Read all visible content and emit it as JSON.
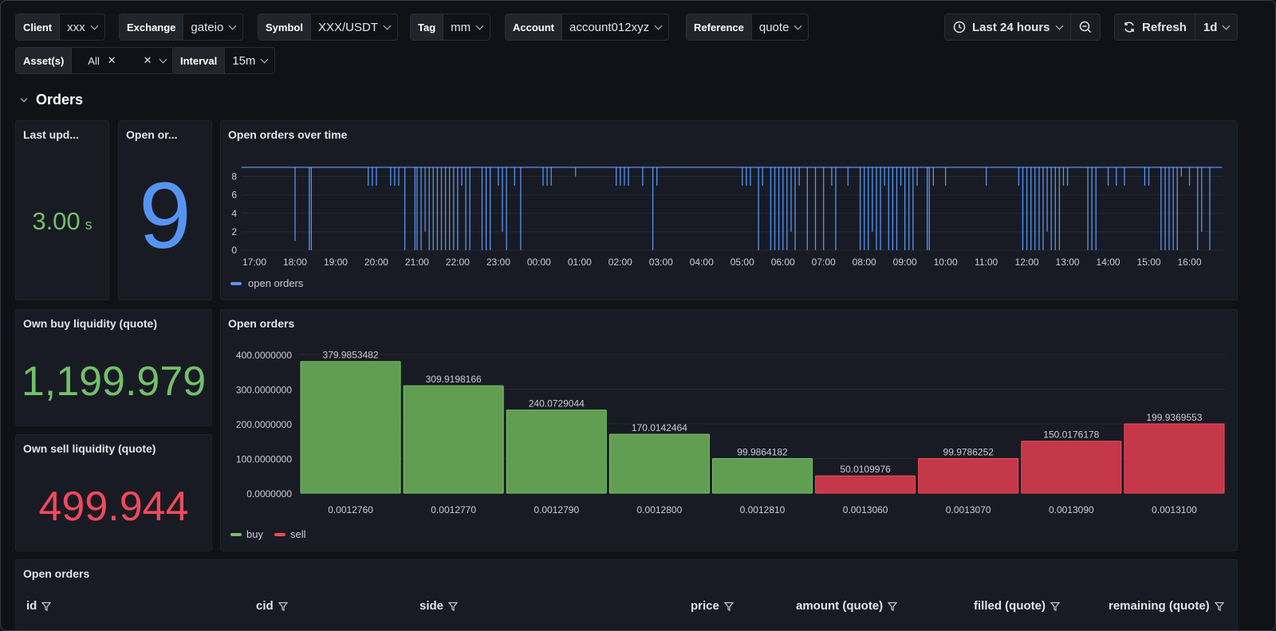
{
  "variables": {
    "client": {
      "label": "Client",
      "value": "xxx"
    },
    "exchange": {
      "label": "Exchange",
      "value": "gateio"
    },
    "symbol": {
      "label": "Symbol",
      "value": "XXX/USDT"
    },
    "tag": {
      "label": "Tag",
      "value": "mm"
    },
    "account": {
      "label": "Account",
      "value": "account012xyz"
    },
    "reference": {
      "label": "Reference",
      "value": "quote"
    },
    "assets": {
      "label": "Asset(s)",
      "value": "All"
    },
    "interval": {
      "label": "Interval",
      "value": "15m"
    }
  },
  "time_picker": {
    "label": "Last 24 hours",
    "icon": "clock-icon"
  },
  "zoom_out": {
    "icon": "zoom-out-icon"
  },
  "refresh": {
    "label": "Refresh",
    "interval": "1d",
    "icon": "refresh-icon"
  },
  "section": {
    "title": "Orders"
  },
  "panels": {
    "last_update": {
      "title": "Last upd...",
      "value": "3.00",
      "unit": "s",
      "color": "#73bf69"
    },
    "open_orders_count": {
      "title": "Open or...",
      "value": "9",
      "color": "#5794f2"
    },
    "open_orders_time": {
      "title": "Open orders over time",
      "legend": "open orders",
      "color": "#5794f2"
    },
    "buy_liq": {
      "title": "Own buy liquidity (quote)",
      "value": "1,199.979",
      "color": "#73bf69"
    },
    "sell_liq": {
      "title": "Own sell liquidity (quote)",
      "value": "499.944",
      "color": "#f2495c"
    },
    "open_orders_bar": {
      "title": "Open orders",
      "legend_buy": "buy",
      "legend_sell": "sell",
      "buy_color": "#73bf69",
      "sell_color": "#f2495c"
    },
    "table": {
      "title": "Open orders",
      "columns": [
        "id",
        "cid",
        "side",
        "price",
        "amount (quote)",
        "filled (quote)",
        "remaining (quote)"
      ]
    }
  },
  "chart_data": [
    {
      "type": "line",
      "title": "Open orders over time",
      "series": [
        {
          "name": "open orders",
          "color": "#5794f2",
          "baseline": 9
        }
      ],
      "x_ticks": [
        "17:00",
        "18:00",
        "19:00",
        "20:00",
        "21:00",
        "22:00",
        "23:00",
        "00:00",
        "01:00",
        "02:00",
        "03:00",
        "04:00",
        "05:00",
        "06:00",
        "07:00",
        "08:00",
        "09:00",
        "10:00",
        "11:00",
        "12:00",
        "13:00",
        "14:00",
        "15:00",
        "16:00"
      ],
      "y_ticks": [
        0,
        2,
        4,
        6,
        8
      ],
      "ylim": [
        0,
        9
      ],
      "dips": [
        {
          "t": 18.0,
          "v": 1
        },
        {
          "t": 18.35,
          "v": 0
        },
        {
          "t": 18.4,
          "v": 0
        },
        {
          "t": 19.8,
          "v": 7
        },
        {
          "t": 19.9,
          "v": 7
        },
        {
          "t": 20.0,
          "v": 7
        },
        {
          "t": 20.35,
          "v": 7
        },
        {
          "t": 20.45,
          "v": 7
        },
        {
          "t": 20.55,
          "v": 7
        },
        {
          "t": 20.7,
          "v": 0
        },
        {
          "t": 20.95,
          "v": 0
        },
        {
          "t": 21.0,
          "v": 0
        },
        {
          "t": 21.1,
          "v": 0
        },
        {
          "t": 21.2,
          "v": 2
        },
        {
          "t": 21.3,
          "v": 0
        },
        {
          "t": 21.4,
          "v": 0
        },
        {
          "t": 21.5,
          "v": 0
        },
        {
          "t": 21.6,
          "v": 0
        },
        {
          "t": 21.7,
          "v": 0
        },
        {
          "t": 21.8,
          "v": 0
        },
        {
          "t": 21.9,
          "v": 0
        },
        {
          "t": 22.0,
          "v": 0
        },
        {
          "t": 22.1,
          "v": 7
        },
        {
          "t": 22.2,
          "v": 0
        },
        {
          "t": 22.3,
          "v": 0
        },
        {
          "t": 22.6,
          "v": 0
        },
        {
          "t": 22.7,
          "v": 0
        },
        {
          "t": 22.8,
          "v": 0
        },
        {
          "t": 23.0,
          "v": 7
        },
        {
          "t": 23.1,
          "v": 2
        },
        {
          "t": 23.2,
          "v": 0
        },
        {
          "t": 23.4,
          "v": 7
        },
        {
          "t": 23.55,
          "v": 0
        },
        {
          "t": 24.1,
          "v": 7
        },
        {
          "t": 24.2,
          "v": 7
        },
        {
          "t": 24.3,
          "v": 7
        },
        {
          "t": 24.9,
          "v": 8
        },
        {
          "t": 25.9,
          "v": 7
        },
        {
          "t": 26.0,
          "v": 7
        },
        {
          "t": 26.1,
          "v": 7
        },
        {
          "t": 26.2,
          "v": 7
        },
        {
          "t": 26.55,
          "v": 7
        },
        {
          "t": 26.8,
          "v": 0
        },
        {
          "t": 26.9,
          "v": 7
        },
        {
          "t": 29.0,
          "v": 7
        },
        {
          "t": 29.1,
          "v": 7
        },
        {
          "t": 29.2,
          "v": 7
        },
        {
          "t": 29.4,
          "v": 0
        },
        {
          "t": 29.5,
          "v": 7
        },
        {
          "t": 29.7,
          "v": 0
        },
        {
          "t": 29.8,
          "v": 0
        },
        {
          "t": 29.9,
          "v": 0
        },
        {
          "t": 30.0,
          "v": 0
        },
        {
          "t": 30.1,
          "v": 0
        },
        {
          "t": 30.2,
          "v": 2
        },
        {
          "t": 30.3,
          "v": 0
        },
        {
          "t": 30.4,
          "v": 7
        },
        {
          "t": 30.6,
          "v": 0
        },
        {
          "t": 30.8,
          "v": 0
        },
        {
          "t": 31.0,
          "v": 0
        },
        {
          "t": 31.2,
          "v": 7
        },
        {
          "t": 31.3,
          "v": 0
        },
        {
          "t": 31.6,
          "v": 7
        },
        {
          "t": 31.9,
          "v": 0
        },
        {
          "t": 32.0,
          "v": 0
        },
        {
          "t": 32.1,
          "v": 0
        },
        {
          "t": 32.2,
          "v": 2
        },
        {
          "t": 32.3,
          "v": 0
        },
        {
          "t": 32.4,
          "v": 0
        },
        {
          "t": 32.5,
          "v": 7
        },
        {
          "t": 32.6,
          "v": 0
        },
        {
          "t": 32.7,
          "v": 0
        },
        {
          "t": 32.8,
          "v": 0
        },
        {
          "t": 32.9,
          "v": 7
        },
        {
          "t": 33.0,
          "v": 0
        },
        {
          "t": 33.1,
          "v": 0
        },
        {
          "t": 33.2,
          "v": 0
        },
        {
          "t": 33.3,
          "v": 7
        },
        {
          "t": 33.55,
          "v": 0
        },
        {
          "t": 33.6,
          "v": 0
        },
        {
          "t": 33.7,
          "v": 7
        },
        {
          "t": 34.0,
          "v": 7
        },
        {
          "t": 35.0,
          "v": 7
        },
        {
          "t": 35.8,
          "v": 7
        },
        {
          "t": 35.9,
          "v": 0
        },
        {
          "t": 36.0,
          "v": 0
        },
        {
          "t": 36.1,
          "v": 0
        },
        {
          "t": 36.2,
          "v": 0
        },
        {
          "t": 36.3,
          "v": 0
        },
        {
          "t": 36.4,
          "v": 0
        },
        {
          "t": 36.5,
          "v": 2
        },
        {
          "t": 36.6,
          "v": 0
        },
        {
          "t": 36.7,
          "v": 0
        },
        {
          "t": 36.8,
          "v": 0
        },
        {
          "t": 36.9,
          "v": 7
        },
        {
          "t": 37.0,
          "v": 7
        },
        {
          "t": 37.5,
          "v": 0
        },
        {
          "t": 37.6,
          "v": 0
        },
        {
          "t": 37.7,
          "v": 0
        },
        {
          "t": 38.0,
          "v": 7
        },
        {
          "t": 38.2,
          "v": 7
        },
        {
          "t": 38.4,
          "v": 7
        },
        {
          "t": 38.9,
          "v": 7
        },
        {
          "t": 39.0,
          "v": 7
        },
        {
          "t": 39.3,
          "v": 0
        },
        {
          "t": 39.4,
          "v": 0
        },
        {
          "t": 39.5,
          "v": 0
        },
        {
          "t": 39.6,
          "v": 0
        },
        {
          "t": 39.7,
          "v": 0
        },
        {
          "t": 39.8,
          "v": 8
        },
        {
          "t": 40.0,
          "v": 7
        },
        {
          "t": 40.2,
          "v": 0
        },
        {
          "t": 40.3,
          "v": 2
        },
        {
          "t": 40.5,
          "v": 0
        }
      ]
    },
    {
      "type": "bar",
      "title": "Open orders",
      "categories": [
        "0.0012760",
        "0.0012770",
        "0.0012790",
        "0.0012800",
        "0.0012810",
        "0.0013060",
        "0.0013070",
        "0.0013090",
        "0.0013100"
      ],
      "values": [
        379.9853482,
        309.9198166,
        240.0729044,
        170.0142464,
        99.9864182,
        50.0109976,
        99.9786252,
        150.0176178,
        199.9369553
      ],
      "labels": [
        "379.9853482",
        "309.9198166",
        "240.0729044",
        "170.0142464",
        "99.9864182",
        "50.0109976",
        "99.9786252",
        "150.0176178",
        "199.9369553"
      ],
      "sides": [
        "buy",
        "buy",
        "buy",
        "buy",
        "buy",
        "sell",
        "sell",
        "sell",
        "sell"
      ],
      "y_ticks": [
        "0.0000000",
        "100.0000000",
        "200.0000000",
        "300.0000000",
        "400.0000000"
      ],
      "ylim": [
        0,
        400
      ],
      "series": [
        {
          "name": "buy"
        },
        {
          "name": "sell"
        }
      ]
    }
  ]
}
